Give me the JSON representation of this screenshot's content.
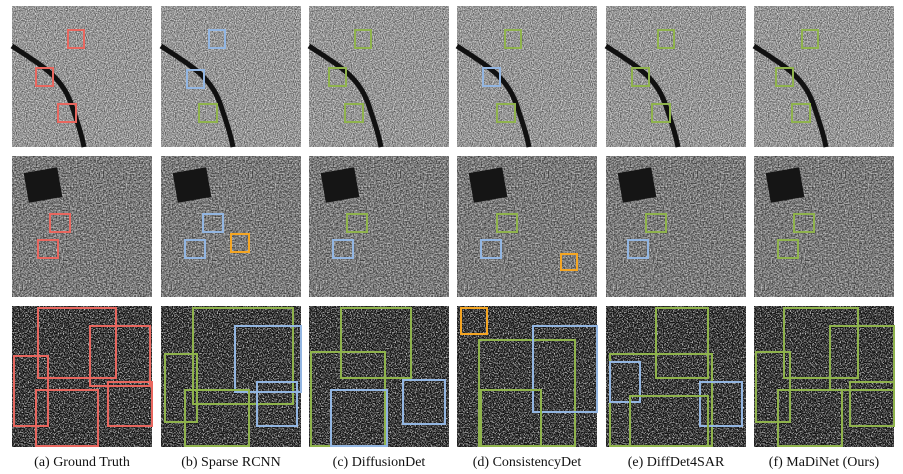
{
  "figure": {
    "captions": [
      "(a) Ground Truth",
      "(b) Sparse RCNN",
      "(c) DiffusionDet",
      "(d) ConsistencyDet",
      "(e) DiffDet4SAR",
      "(f) MaDiNet (Ours)"
    ]
  }
}
